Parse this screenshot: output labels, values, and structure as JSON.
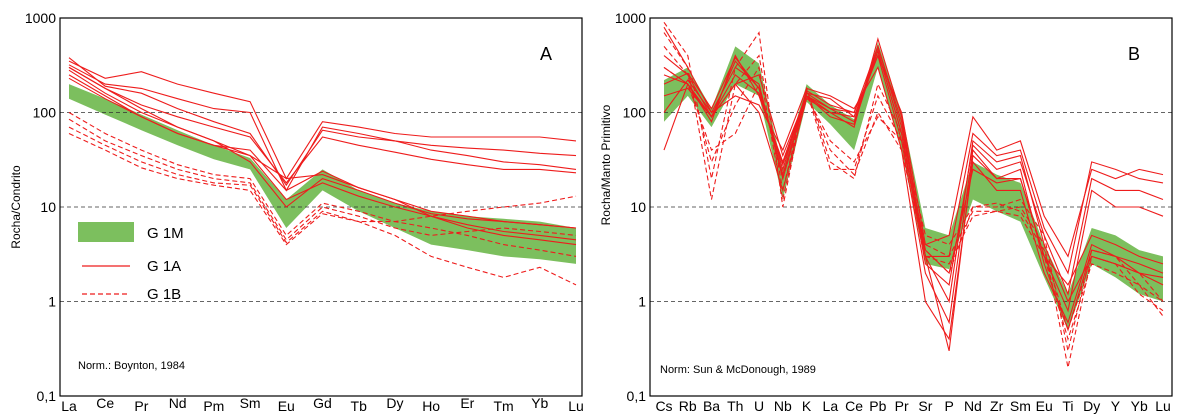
{
  "colors": {
    "green": "#7cbf5e",
    "red": "#ee1c1c",
    "grid": "#333333"
  },
  "chart_data": [
    {
      "id": "A",
      "type": "line",
      "title": "",
      "panel_label": "A",
      "ylabel": "Rocha/Condrito",
      "xlabel": "",
      "yscale": "log",
      "ylim": [
        0.1,
        1000
      ],
      "yticks": [
        "0,1",
        "1",
        "10",
        "100",
        "1000"
      ],
      "grid_lines_at": [
        1,
        10,
        100
      ],
      "categories": [
        "La",
        "Ce",
        "Pr",
        "Nd",
        "Pm",
        "Sm",
        "Eu",
        "Gd",
        "Tb",
        "Dy",
        "Ho",
        "Er",
        "Tm",
        "Yb",
        "Lu"
      ],
      "note": "Norm.: Boynton, 1984",
      "legend": {
        "placement": "middle-left",
        "entries": [
          {
            "label": "G 1M",
            "kind": "band"
          },
          {
            "label": "G 1A",
            "kind": "solid"
          },
          {
            "label": "G 1B",
            "kind": "dashed"
          }
        ]
      },
      "band": {
        "name": "G 1M",
        "upper": [
          200,
          140,
          95,
          65,
          45,
          33,
          12,
          25,
          15,
          11,
          9,
          8,
          7.5,
          7,
          6
        ],
        "lower": [
          140,
          95,
          65,
          45,
          32,
          25,
          6,
          15,
          9,
          6,
          4,
          3.5,
          3,
          2.8,
          2.5
        ]
      },
      "series": [
        {
          "name": "G 1A",
          "style": "solid",
          "values": [
            380,
            190,
            160,
            110,
            80,
            60,
            17,
            65,
            55,
            50,
            45,
            42,
            40,
            37,
            35
          ]
        },
        {
          "name": "G 1A",
          "style": "solid",
          "values": [
            350,
            230,
            270,
            200,
            160,
            130,
            20,
            80,
            70,
            60,
            55,
            55,
            55,
            55,
            50
          ]
        },
        {
          "name": "G 1A",
          "style": "solid",
          "values": [
            320,
            200,
            180,
            140,
            110,
            100,
            15,
            70,
            60,
            50,
            40,
            35,
            30,
            28,
            25
          ]
        },
        {
          "name": "G 1A",
          "style": "solid",
          "values": [
            300,
            180,
            120,
            90,
            70,
            55,
            18,
            55,
            45,
            38,
            32,
            28,
            25,
            25,
            23
          ]
        },
        {
          "name": "G 1A",
          "style": "solid",
          "values": [
            300,
            180,
            110,
            70,
            50,
            35,
            20,
            22,
            16,
            12,
            9,
            8,
            7,
            6.5,
            6
          ]
        },
        {
          "name": "G 1A",
          "style": "solid",
          "values": [
            280,
            160,
            100,
            70,
            50,
            30,
            10,
            20,
            15,
            11,
            8.5,
            7.5,
            7,
            6.5,
            6
          ]
        },
        {
          "name": "G 1A",
          "style": "solid",
          "values": [
            250,
            150,
            90,
            60,
            45,
            35,
            12,
            18,
            13,
            10,
            8,
            6.5,
            5.5,
            5,
            4.5
          ]
        },
        {
          "name": "G 1A",
          "style": "solid",
          "values": [
            230,
            140,
            90,
            60,
            45,
            40,
            15,
            24,
            16,
            12,
            8,
            6,
            5,
            4.5,
            4
          ]
        },
        {
          "name": "G 1B",
          "style": "dashed",
          "values": [
            100,
            60,
            40,
            28,
            22,
            20,
            5,
            11,
            9,
            7,
            6,
            5,
            4,
            3.5,
            3
          ]
        },
        {
          "name": "G 1B",
          "style": "dashed",
          "values": [
            85,
            50,
            35,
            25,
            20,
            18,
            4.5,
            10,
            8,
            6,
            5,
            5.5,
            6,
            5.5,
            5
          ]
        },
        {
          "name": "G 1B",
          "style": "dashed",
          "values": [
            70,
            45,
            30,
            22,
            18,
            17,
            4.2,
            9,
            7,
            5,
            3,
            2.3,
            1.8,
            2.3,
            1.5
          ]
        },
        {
          "name": "G 1B",
          "style": "dashed",
          "values": [
            60,
            40,
            26,
            20,
            17,
            15,
            4,
            8.5,
            7,
            7,
            8,
            9,
            10,
            11,
            13
          ]
        }
      ]
    },
    {
      "id": "B",
      "type": "line",
      "title": "",
      "panel_label": "B",
      "ylabel": "Rocha/Manto Primitivo",
      "xlabel": "",
      "yscale": "log",
      "ylim": [
        0.1,
        1000
      ],
      "yticks": [
        "0,1",
        "1",
        "10",
        "100",
        "1000"
      ],
      "grid_lines_at": [
        1,
        10,
        100
      ],
      "categories": [
        "Cs",
        "Rb",
        "Ba",
        "Th",
        "U",
        "Nb",
        "K",
        "La",
        "Ce",
        "Pb",
        "Pr",
        "Sr",
        "P",
        "Nd",
        "Zr",
        "Sm",
        "Eu",
        "Ti",
        "Dy",
        "Y",
        "Yb",
        "Lu"
      ],
      "note": "Norm: Sun & McDonough, 1989",
      "band": {
        "name": "G 1M",
        "upper": [
          220,
          300,
          110,
          500,
          330,
          25,
          200,
          120,
          85,
          550,
          100,
          6,
          5,
          30,
          22,
          18,
          4,
          1.2,
          6,
          5,
          3.5,
          3
        ],
        "lower": [
          80,
          150,
          70,
          200,
          150,
          12,
          130,
          75,
          40,
          300,
          40,
          2.5,
          2.2,
          12,
          9,
          7,
          1.8,
          0.5,
          2.5,
          1.8,
          1.2,
          1
        ]
      },
      "series": [
        {
          "name": "G 1A",
          "style": "solid",
          "values": [
            800,
            300,
            100,
            300,
            200,
            20,
            150,
            100,
            90,
            400,
            100,
            4,
            5,
            90,
            40,
            50,
            8,
            3,
            25,
            20,
            25,
            22
          ]
        },
        {
          "name": "G 1A",
          "style": "solid",
          "values": [
            400,
            250,
            90,
            350,
            180,
            25,
            170,
            120,
            100,
            500,
            80,
            3,
            3,
            60,
            35,
            40,
            6,
            2,
            30,
            25,
            20,
            18
          ]
        },
        {
          "name": "G 1A",
          "style": "solid",
          "values": [
            250,
            200,
            80,
            400,
            150,
            30,
            160,
            140,
            90,
            450,
            60,
            2.5,
            1.5,
            45,
            25,
            30,
            5,
            1.2,
            20,
            15,
            15,
            12
          ]
        },
        {
          "name": "G 1A",
          "style": "solid",
          "values": [
            150,
            180,
            90,
            200,
            250,
            35,
            150,
            110,
            100,
            400,
            50,
            2,
            0.6,
            40,
            20,
            20,
            3,
            0.8,
            15,
            10,
            10,
            8
          ]
        },
        {
          "name": "G 1A",
          "style": "solid",
          "values": [
            100,
            220,
            100,
            150,
            120,
            40,
            180,
            150,
            110,
            300,
            40,
            1,
            0.4,
            30,
            15,
            15,
            2,
            0.6,
            4,
            3,
            2.5,
            2
          ]
        },
        {
          "name": "G 1A",
          "style": "solid",
          "values": [
            40,
            200,
            90,
            200,
            100,
            15,
            140,
            100,
            70,
            600,
            90,
            3,
            0.3,
            35,
            20,
            25,
            2.5,
            0.5,
            3.5,
            3,
            2,
            1.5
          ]
        },
        {
          "name": "G 1A",
          "style": "solid",
          "values": [
            200,
            260,
            110,
            380,
            180,
            22,
            160,
            110,
            80,
            500,
            70,
            3.5,
            2,
            25,
            18,
            20,
            3,
            1.5,
            5,
            4,
            3,
            2.5
          ]
        },
        {
          "name": "G 1A",
          "style": "solid",
          "values": [
            300,
            200,
            90,
            250,
            160,
            28,
            150,
            90,
            75,
            450,
            60,
            3,
            1,
            50,
            30,
            35,
            4,
            1,
            3,
            2.5,
            2,
            1.8
          ]
        },
        {
          "name": "G 1B",
          "style": "dashed",
          "values": [
            900,
            400,
            20,
            300,
            700,
            10,
            180,
            30,
            20,
            200,
            60,
            5,
            4,
            10,
            10,
            12,
            5,
            0.3,
            3.5,
            3,
            1.5,
            1
          ]
        },
        {
          "name": "G 1B",
          "style": "dashed",
          "values": [
            700,
            300,
            12,
            200,
            400,
            15,
            170,
            25,
            25,
            150,
            50,
            4,
            3,
            9,
            9,
            10,
            4,
            0.2,
            3,
            2.5,
            1.2,
            0.8
          ]
        },
        {
          "name": "G 1B",
          "style": "dashed",
          "values": [
            500,
            250,
            30,
            120,
            300,
            12,
            160,
            40,
            22,
            100,
            40,
            3,
            2.5,
            8,
            9,
            8,
            3,
            0.4,
            2.5,
            2,
            1.5,
            0.7
          ]
        },
        {
          "name": "G 1B",
          "style": "dashed",
          "values": [
            300,
            200,
            40,
            60,
            200,
            20,
            150,
            50,
            30,
            90,
            50,
            3.5,
            2,
            10,
            11,
            9,
            3.5,
            0.5,
            3,
            2.5,
            2,
            1
          ]
        }
      ]
    }
  ]
}
